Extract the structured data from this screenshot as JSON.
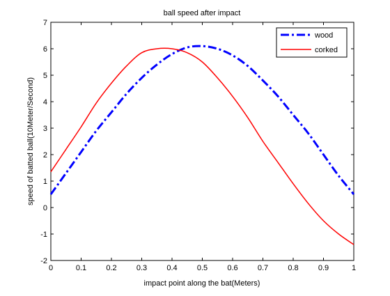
{
  "chart_data": {
    "type": "line",
    "title": "ball speed after impact",
    "xlabel": "impact point along the bat(Meters)",
    "ylabel": "speed of batted ball(10Meter/Second)",
    "xlim": [
      0,
      1
    ],
    "ylim": [
      -2,
      7
    ],
    "xticks": [
      0,
      0.1,
      0.2,
      0.3,
      0.4,
      0.5,
      0.6,
      0.7,
      0.8,
      0.9,
      1
    ],
    "xtick_labels": [
      "0",
      "0.1",
      "0.2",
      "0.3",
      "0.4",
      "0.5",
      "0.6",
      "0.7",
      "0.8",
      "0.9",
      "1"
    ],
    "yticks": [
      -2,
      -1,
      0,
      1,
      2,
      3,
      4,
      5,
      6,
      7
    ],
    "ytick_labels": [
      "-2",
      "-1",
      "0",
      "1",
      "2",
      "3",
      "4",
      "5",
      "6",
      "7"
    ],
    "grid": false,
    "legend_position": "top-right",
    "x": [
      0,
      0.05,
      0.1,
      0.15,
      0.2,
      0.25,
      0.3,
      0.35,
      0.4,
      0.45,
      0.5,
      0.55,
      0.6,
      0.65,
      0.7,
      0.75,
      0.8,
      0.85,
      0.9,
      0.95,
      1
    ],
    "series": [
      {
        "name": "wood",
        "color": "#0000ff",
        "line_style": "dash-dot",
        "values": [
          0.5,
          1.3,
          2.1,
          2.9,
          3.6,
          4.3,
          4.9,
          5.4,
          5.8,
          6.05,
          6.1,
          6.0,
          5.75,
          5.35,
          4.8,
          4.2,
          3.5,
          2.8,
          2.0,
          1.2,
          0.5
        ]
      },
      {
        "name": "corked",
        "color": "#ff0000",
        "line_style": "solid",
        "values": [
          1.35,
          2.2,
          3.05,
          3.95,
          4.7,
          5.35,
          5.85,
          6.0,
          6.0,
          5.85,
          5.5,
          4.9,
          4.2,
          3.4,
          2.5,
          1.7,
          0.9,
          0.15,
          -0.5,
          -1.0,
          -1.4
        ]
      }
    ]
  }
}
